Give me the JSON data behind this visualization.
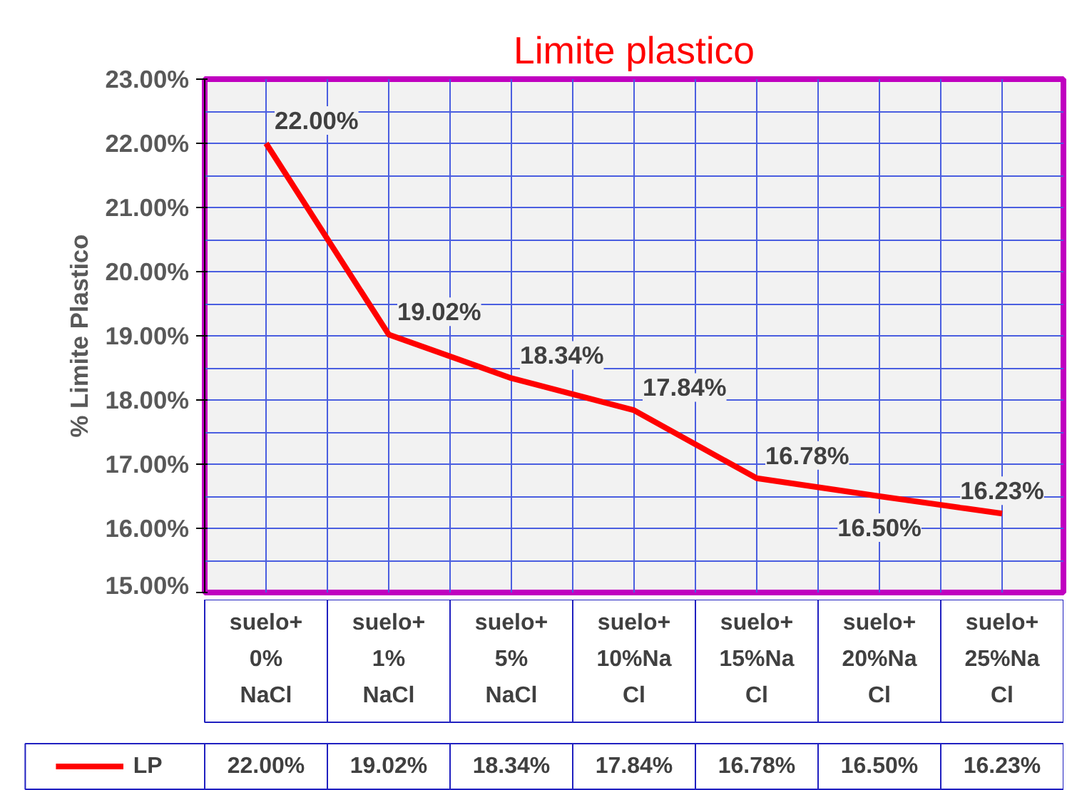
{
  "chart_data": {
    "type": "line",
    "title": "Limite plastico",
    "ylabel": "% Limite Plastico",
    "categories": [
      "suelo+ 0% NaCl",
      "suelo+ 1% NaCl",
      "suelo+ 5% NaCl",
      "suelo+ 10%NaCl",
      "suelo+ 15%NaCl",
      "suelo+ 20%NaCl",
      "suelo+ 25%NaCl"
    ],
    "series": [
      {
        "name": "LP",
        "color": "#ff0000",
        "values": [
          22.0,
          19.02,
          18.34,
          17.84,
          16.78,
          16.5,
          16.23
        ]
      }
    ],
    "ylim": [
      15,
      23
    ],
    "yticks": [
      {
        "value": 15,
        "label": "15.00%"
      },
      {
        "value": 16,
        "label": "16.00%"
      },
      {
        "value": 17,
        "label": "17.00%"
      },
      {
        "value": 18,
        "label": "18.00%"
      },
      {
        "value": 19,
        "label": "19.00%"
      },
      {
        "value": 20,
        "label": "20.00%"
      },
      {
        "value": 21,
        "label": "21.00%"
      },
      {
        "value": 22,
        "label": "22.00%"
      },
      {
        "value": 23,
        "label": "23.00%"
      }
    ],
    "value_labels": [
      "22.00%",
      "19.02%",
      "18.34%",
      "17.84%",
      "16.78%",
      "16.50%",
      "16.23%"
    ],
    "grid": true,
    "legend": "bottom",
    "marker": "none",
    "line_style": "solid"
  }
}
